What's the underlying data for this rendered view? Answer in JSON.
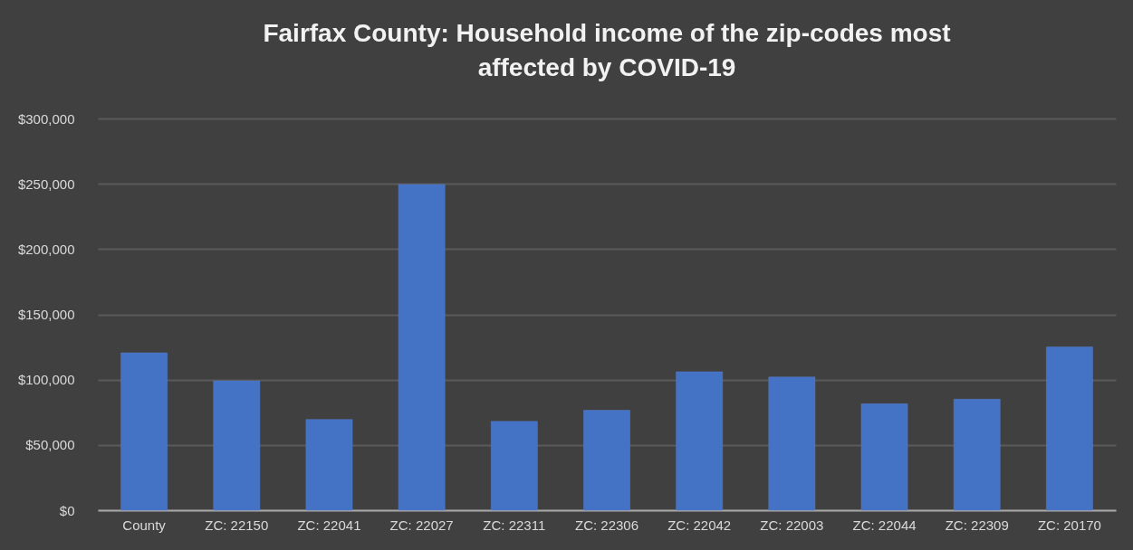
{
  "chart_data": {
    "type": "bar",
    "title": "Fairfax County: Household income of the zip-codes most affected by COVID-19",
    "categories": [
      "County",
      "ZC: 22150",
      "ZC: 22041",
      "ZC: 22027",
      "ZC: 22311",
      "ZC: 22306",
      "ZC: 22042",
      "ZC: 22003",
      "ZC: 22044",
      "ZC: 22309",
      "ZC: 20170"
    ],
    "values": [
      120500,
      99000,
      69500,
      249500,
      68000,
      76500,
      106000,
      102000,
      81500,
      85000,
      125000
    ],
    "color": "#4472c4",
    "ylim": [
      0,
      300000
    ],
    "yticks": [
      {
        "value": 0,
        "label": "$0"
      },
      {
        "value": 50000,
        "label": "$50,000"
      },
      {
        "value": 100000,
        "label": "$100,000"
      },
      {
        "value": 150000,
        "label": "$150,000"
      },
      {
        "value": 200000,
        "label": "$200,000"
      },
      {
        "value": 250000,
        "label": "$250,000"
      },
      {
        "value": 300000,
        "label": "$300,000"
      }
    ],
    "grid": "y"
  }
}
